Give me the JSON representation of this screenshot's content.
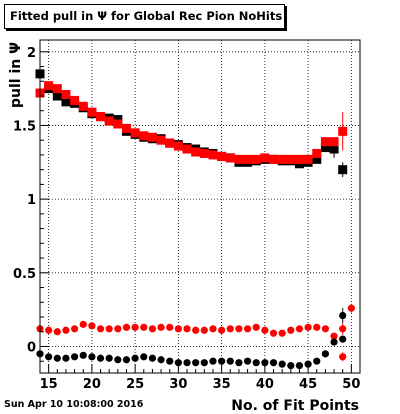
{
  "chart_data": {
    "type": "scatter",
    "title": "Fitted pull in Ψ for Global Rec Pion NoHits",
    "xlabel": "No. of Fit Points",
    "ylabel": "pull in Ψ",
    "xlim": [
      14,
      51
    ],
    "ylim": [
      -0.18,
      2.08
    ],
    "x_ticks": [
      15,
      20,
      25,
      30,
      35,
      40,
      45,
      50
    ],
    "x_tick_labels": [
      "15",
      "20",
      "25",
      "30",
      "35",
      "40",
      "45",
      "50"
    ],
    "y_ticks": [
      0,
      0.5,
      1,
      1.5,
      2
    ],
    "y_tick_labels": [
      "0",
      "0.5",
      "1",
      "1.5",
      "2"
    ],
    "grid": true,
    "series": [
      {
        "kind": "mean-pull",
        "marker": "square",
        "color": "#000000",
        "x": [
          14,
          15,
          16,
          17,
          18,
          19,
          20,
          21,
          22,
          23,
          24,
          25,
          26,
          27,
          28,
          29,
          30,
          31,
          32,
          33,
          34,
          35,
          36,
          37,
          38,
          39,
          40,
          41,
          42,
          43,
          44,
          45,
          46,
          47,
          48,
          49
        ],
        "y": [
          1.85,
          1.75,
          1.7,
          1.66,
          1.65,
          1.62,
          1.58,
          1.56,
          1.55,
          1.54,
          1.46,
          1.44,
          1.42,
          1.41,
          1.41,
          1.38,
          1.37,
          1.35,
          1.34,
          1.32,
          1.31,
          1.29,
          1.28,
          1.25,
          1.25,
          1.26,
          1.27,
          1.27,
          1.26,
          1.26,
          1.24,
          1.25,
          1.27,
          1.35,
          1.34,
          1.2
        ],
        "err": [
          0.03,
          0.02,
          0.02,
          0.02,
          0.02,
          0.02,
          0.02,
          0.02,
          0.02,
          0.02,
          0.02,
          0.02,
          0.02,
          0.02,
          0.02,
          0.02,
          0.02,
          0.02,
          0.02,
          0.02,
          0.02,
          0.02,
          0.02,
          0.02,
          0.02,
          0.02,
          0.02,
          0.02,
          0.02,
          0.02,
          0.02,
          0.02,
          0.02,
          0.03,
          0.06,
          0.05
        ]
      },
      {
        "kind": "mean-pull",
        "marker": "square",
        "color": "#ff0000",
        "x": [
          14,
          15,
          16,
          17,
          18,
          19,
          20,
          21,
          22,
          23,
          24,
          25,
          26,
          27,
          28,
          29,
          30,
          31,
          32,
          33,
          34,
          35,
          36,
          37,
          38,
          39,
          40,
          41,
          42,
          43,
          44,
          45,
          46,
          47,
          48,
          49
        ],
        "y": [
          1.72,
          1.77,
          1.75,
          1.71,
          1.67,
          1.63,
          1.59,
          1.56,
          1.53,
          1.51,
          1.48,
          1.45,
          1.43,
          1.42,
          1.4,
          1.38,
          1.36,
          1.34,
          1.32,
          1.31,
          1.3,
          1.29,
          1.28,
          1.27,
          1.27,
          1.27,
          1.28,
          1.27,
          1.27,
          1.27,
          1.27,
          1.27,
          1.31,
          1.39,
          1.39,
          1.46
        ],
        "err": [
          0.03,
          0.02,
          0.02,
          0.02,
          0.02,
          0.02,
          0.02,
          0.02,
          0.02,
          0.02,
          0.02,
          0.02,
          0.02,
          0.02,
          0.02,
          0.02,
          0.02,
          0.02,
          0.02,
          0.02,
          0.02,
          0.02,
          0.02,
          0.02,
          0.02,
          0.02,
          0.02,
          0.02,
          0.02,
          0.02,
          0.02,
          0.02,
          0.02,
          0.03,
          0.03,
          0.13
        ]
      },
      {
        "kind": "small-marker",
        "marker": "circle",
        "color": "#ff0000",
        "x": [
          14,
          15,
          16,
          17,
          18,
          19,
          20,
          21,
          22,
          23,
          24,
          25,
          26,
          27,
          28,
          29,
          30,
          31,
          32,
          33,
          34,
          35,
          36,
          37,
          38,
          39,
          40,
          41,
          42,
          43,
          44,
          45,
          46,
          47,
          48,
          49,
          50
        ],
        "y": [
          0.12,
          0.11,
          0.1,
          0.11,
          0.12,
          0.15,
          0.14,
          0.12,
          0.12,
          0.12,
          0.13,
          0.13,
          0.13,
          0.12,
          0.13,
          0.13,
          0.12,
          0.12,
          0.11,
          0.11,
          0.12,
          0.11,
          0.12,
          0.12,
          0.12,
          0.13,
          0.11,
          0.09,
          0.09,
          0.11,
          0.12,
          0.13,
          0.13,
          0.12,
          0.07,
          0.12,
          0.26
        ],
        "err": [
          0.01,
          0.01,
          0.01,
          0.01,
          0.01,
          0.01,
          0.01,
          0.01,
          0.01,
          0.01,
          0.01,
          0.01,
          0.01,
          0.01,
          0.01,
          0.01,
          0.01,
          0.01,
          0.01,
          0.01,
          0.01,
          0.01,
          0.01,
          0.01,
          0.01,
          0.01,
          0.01,
          0.01,
          0.01,
          0.01,
          0.01,
          0.01,
          0.01,
          0.01,
          0.02,
          0.04,
          0.03
        ]
      },
      {
        "kind": "small-marker",
        "marker": "circle",
        "color": "#000000",
        "x": [
          14,
          15,
          16,
          17,
          18,
          19,
          20,
          21,
          22,
          23,
          24,
          25,
          26,
          27,
          28,
          29,
          30,
          31,
          32,
          33,
          34,
          35,
          36,
          37,
          38,
          39,
          40,
          41,
          42,
          43,
          44,
          45,
          46,
          47,
          48,
          49
        ],
        "y": [
          -0.05,
          -0.07,
          -0.08,
          -0.08,
          -0.07,
          -0.06,
          -0.07,
          -0.08,
          -0.08,
          -0.09,
          -0.09,
          -0.08,
          -0.07,
          -0.08,
          -0.09,
          -0.1,
          -0.11,
          -0.11,
          -0.11,
          -0.11,
          -0.1,
          -0.1,
          -0.1,
          -0.11,
          -0.1,
          -0.11,
          -0.11,
          -0.11,
          -0.12,
          -0.13,
          -0.13,
          -0.12,
          -0.1,
          -0.05,
          0.03,
          0.05
        ],
        "err": [
          0.01,
          0.01,
          0.01,
          0.01,
          0.01,
          0.01,
          0.01,
          0.01,
          0.01,
          0.01,
          0.01,
          0.01,
          0.01,
          0.01,
          0.01,
          0.01,
          0.01,
          0.01,
          0.01,
          0.01,
          0.01,
          0.01,
          0.01,
          0.01,
          0.01,
          0.01,
          0.01,
          0.01,
          0.01,
          0.01,
          0.01,
          0.01,
          0.01,
          0.01,
          0.02,
          0.02
        ]
      },
      {
        "kind": "extra-points",
        "marker": "circle",
        "color": "#000000",
        "x": [
          49
        ],
        "y": [
          0.21
        ],
        "err": [
          0.05
        ]
      },
      {
        "kind": "extra-points",
        "marker": "circle",
        "color": "#ff0000",
        "x": [
          49
        ],
        "y": [
          -0.07
        ],
        "err": [
          0.03
        ]
      }
    ]
  },
  "footer": {
    "timestamp": "Sun Apr 10 10:08:00 2016"
  }
}
